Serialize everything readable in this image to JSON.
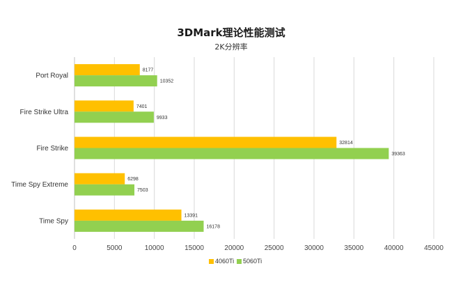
{
  "chart_data": {
    "type": "bar",
    "orientation": "horizontal",
    "title": "3DMark理论性能测试",
    "subtitle": "2K分辨率",
    "categories": [
      "Port Royal",
      "Fire Strike Ultra",
      "Fire Strike",
      "Time Spy Extreme",
      "Time Spy"
    ],
    "series": [
      {
        "name": "4060Ti",
        "color": "#ffc000",
        "values": [
          8177,
          7401,
          32814,
          6298,
          13391
        ],
        "labels": [
          "8177",
          "7401",
          "32814",
          "6298",
          "13391"
        ]
      },
      {
        "name": "5060Ti",
        "color": "#92d050",
        "values": [
          10352,
          9933,
          39363,
          7503,
          16178
        ],
        "labels": [
          "10352",
          "9933",
          "39363",
          "7503",
          "16178"
        ]
      }
    ],
    "xlim": [
      0,
      45000
    ],
    "xticks": [
      0,
      5000,
      10000,
      15000,
      20000,
      25000,
      30000,
      35000,
      40000,
      45000
    ],
    "xtick_labels": [
      "0",
      "5000",
      "10000",
      "15000",
      "20000",
      "25000",
      "30000",
      "35000",
      "40000",
      "45000"
    ],
    "grid": true,
    "legend_position": "bottom-center"
  }
}
